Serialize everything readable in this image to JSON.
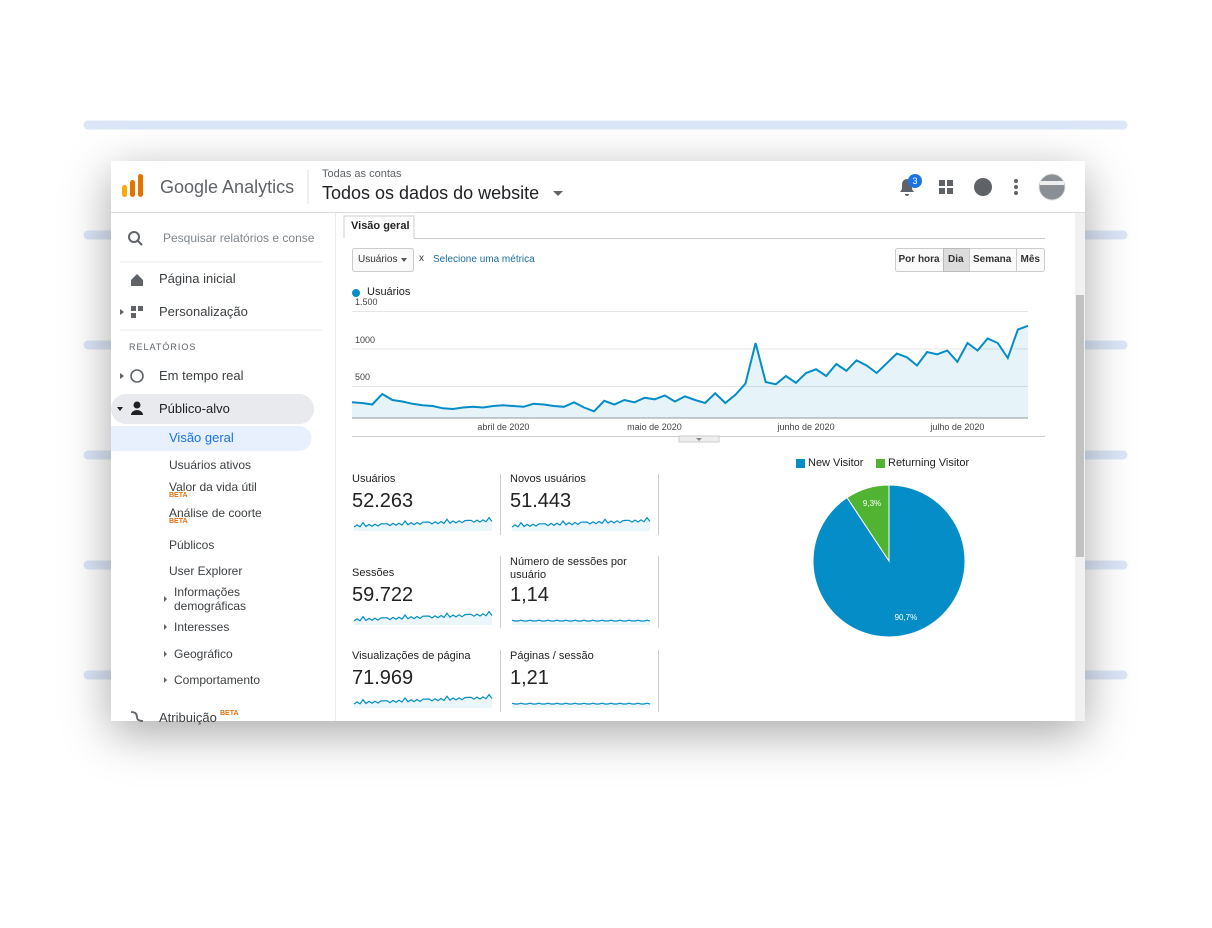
{
  "header": {
    "brand": "Google Analytics",
    "breadcrumb": "Todas as contas",
    "account": "Todos os dados do website",
    "notifications": "3"
  },
  "sidebar": {
    "search": "Pesquisar relatórios e conse",
    "section": "RELATÓRIOS",
    "items": [
      {
        "label": "Página inicial"
      },
      {
        "label": "Personalização"
      },
      {
        "label": "Em tempo real"
      },
      {
        "label": "Público-alvo"
      },
      {
        "label": "Visão geral"
      },
      {
        "label": "Usuários ativos"
      },
      {
        "label": "Valor da vida útil",
        "badge": "BETA"
      },
      {
        "label": "Análise de coorte",
        "badge": "BETA"
      },
      {
        "label": "Públicos"
      },
      {
        "label": "User Explorer"
      },
      {
        "label": "Informações demográficas"
      },
      {
        "label": "Interesses"
      },
      {
        "label": "Geográfico"
      },
      {
        "label": "Comportamento"
      },
      {
        "label": "Atribuição",
        "badge": "BETA"
      }
    ]
  },
  "tab": "Visão geral",
  "controls": {
    "metric": "Usuários",
    "remove": "x",
    "add": "Selecione uma métrica",
    "periods": [
      "Por hora",
      "Dia",
      "Semana",
      "Mês"
    ]
  },
  "metrics": [
    {
      "label": "Usuários",
      "value": "52.263"
    },
    {
      "label": "Novos usuários",
      "value": "51.443"
    },
    {
      "label": "Sessões",
      "value": "59.722"
    },
    {
      "label": "Número de sessões por usuário",
      "value": "1,14"
    },
    {
      "label": "Visualizações de página",
      "value": "71.969"
    },
    {
      "label": "Páginas / sessão",
      "value": "1,21"
    }
  ],
  "chart_data": [
    {
      "type": "line",
      "categories": [
        null,
        null,
        null,
        null,
        null,
        null,
        null,
        null,
        null,
        null,
        null,
        null,
        null,
        null,
        null,
        "abril de 2020",
        null,
        null,
        null,
        null,
        null,
        null,
        null,
        null,
        null,
        null,
        null,
        null,
        null,
        null,
        "maio de 2020",
        null,
        null,
        null,
        null,
        null,
        null,
        null,
        null,
        null,
        null,
        null,
        null,
        null,
        null,
        "junho de 2020",
        null,
        null,
        null,
        null,
        null,
        null,
        null,
        null,
        null,
        null,
        null,
        null,
        null,
        null,
        "julho de 2020",
        null,
        null,
        null,
        null,
        null,
        null,
        null
      ],
      "series": [
        {
          "name": "Usuários",
          "color": "#058dc7",
          "values": [
            210,
            200,
            180,
            320,
            240,
            220,
            190,
            170,
            160,
            130,
            120,
            140,
            150,
            140,
            160,
            170,
            160,
            150,
            190,
            180,
            160,
            150,
            210,
            140,
            90,
            230,
            180,
            240,
            210,
            270,
            250,
            300,
            220,
            290,
            240,
            200,
            330,
            200,
            310,
            460,
            1000,
            480,
            450,
            560,
            470,
            600,
            650,
            560,
            720,
            630,
            770,
            700,
            600,
            730,
            860,
            810,
            700,
            880,
            850,
            900,
            750,
            1000,
            900,
            1060,
            1000,
            800,
            1180,
            1230
          ]
        }
      ],
      "ylim": [
        0,
        1600
      ],
      "yticks": [
        500,
        1000,
        {
          "value": 1500,
          "label": "1.500"
        }
      ],
      "grid": true
    },
    {
      "type": "pie",
      "categories": [
        "New Visitor",
        "Returning Visitor"
      ],
      "values": [
        90.7,
        9.3
      ],
      "value_labels": [
        "90,7%",
        "9,3%"
      ],
      "colors": [
        "#058dc7",
        "#50b432"
      ]
    }
  ]
}
